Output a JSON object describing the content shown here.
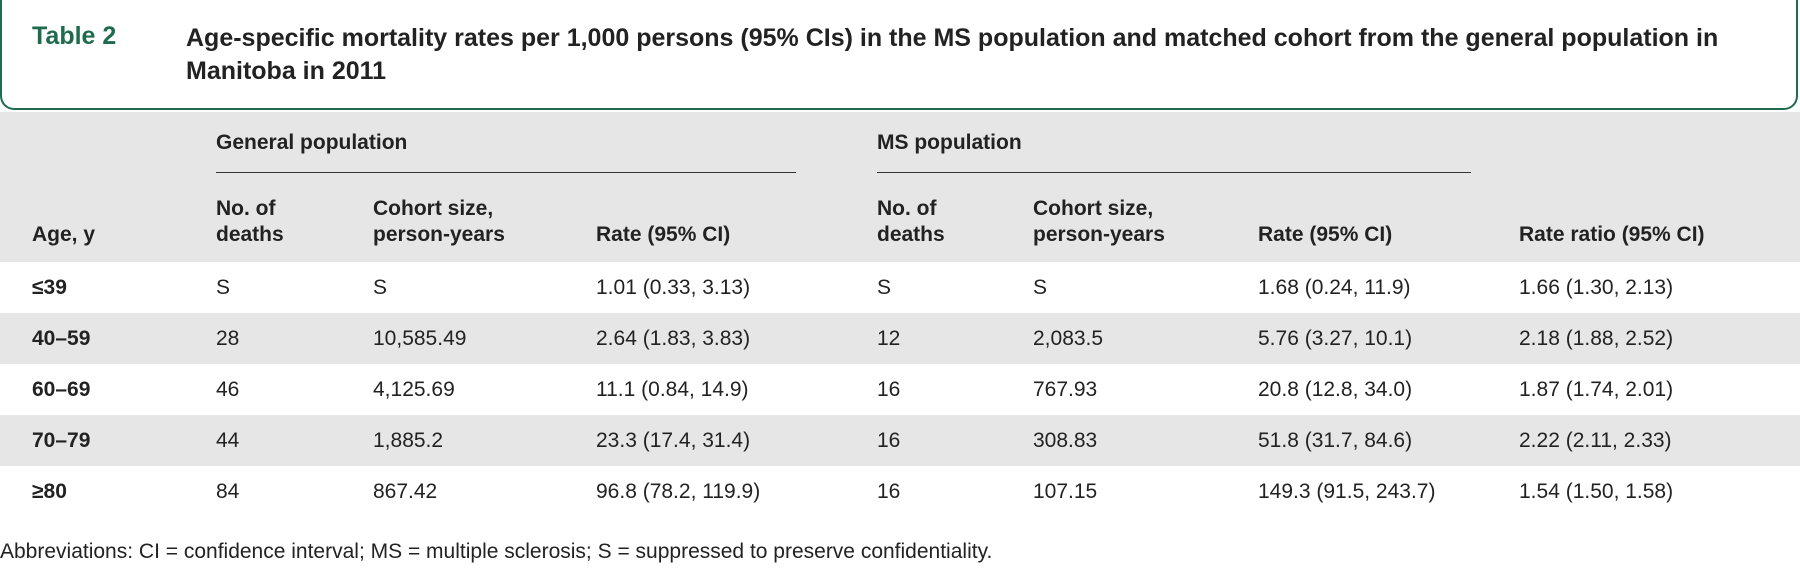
{
  "title": {
    "label": "Table 2",
    "text": "Age-specific mortality rates per 1,000 persons (95% CIs) in the MS population and matched cohort from the general population in Manitoba in 2011"
  },
  "groups": {
    "general": "General population",
    "ms": "MS population"
  },
  "columns": {
    "age": "Age, y",
    "gen_deaths": "No. of deaths",
    "gen_cohort": "Cohort size, person-years",
    "gen_rate": "Rate (95% CI)",
    "ms_deaths": "No. of deaths",
    "ms_cohort": "Cohort size, person-years",
    "ms_rate": "Rate (95% CI)",
    "ratio": "Rate ratio (95% CI)"
  },
  "rows": [
    {
      "age": "≤39",
      "gen_deaths": "S",
      "gen_cohort": "S",
      "gen_rate": "1.01 (0.33, 3.13)",
      "ms_deaths": "S",
      "ms_cohort": "S",
      "ms_rate": "1.68 (0.24, 11.9)",
      "ratio": "1.66 (1.30, 2.13)"
    },
    {
      "age": "40–59",
      "gen_deaths": "28",
      "gen_cohort": "10,585.49",
      "gen_rate": "2.64 (1.83, 3.83)",
      "ms_deaths": "12",
      "ms_cohort": "2,083.5",
      "ms_rate": "5.76 (3.27, 10.1)",
      "ratio": "2.18 (1.88, 2.52)"
    },
    {
      "age": "60–69",
      "gen_deaths": "46",
      "gen_cohort": "4,125.69",
      "gen_rate": "11.1 (0.84, 14.9)",
      "ms_deaths": "16",
      "ms_cohort": "767.93",
      "ms_rate": "20.8 (12.8, 34.0)",
      "ratio": "1.87 (1.74, 2.01)"
    },
    {
      "age": "70–79",
      "gen_deaths": "44",
      "gen_cohort": "1,885.2",
      "gen_rate": "23.3 (17.4, 31.4)",
      "ms_deaths": "16",
      "ms_cohort": "308.83",
      "ms_rate": "51.8 (31.7, 84.6)",
      "ratio": "2.22 (2.11, 2.33)"
    },
    {
      "age": "≥80",
      "gen_deaths": "84",
      "gen_cohort": "867.42",
      "gen_rate": "96.8 (78.2, 119.9)",
      "ms_deaths": "16",
      "ms_cohort": "107.15",
      "ms_rate": "149.3 (91.5, 243.7)",
      "ratio": "1.54 (1.50, 1.58)"
    }
  ],
  "footnote": "Abbreviations: CI = confidence interval; MS = multiple sclerosis; S = suppressed to preserve confidentiality."
}
